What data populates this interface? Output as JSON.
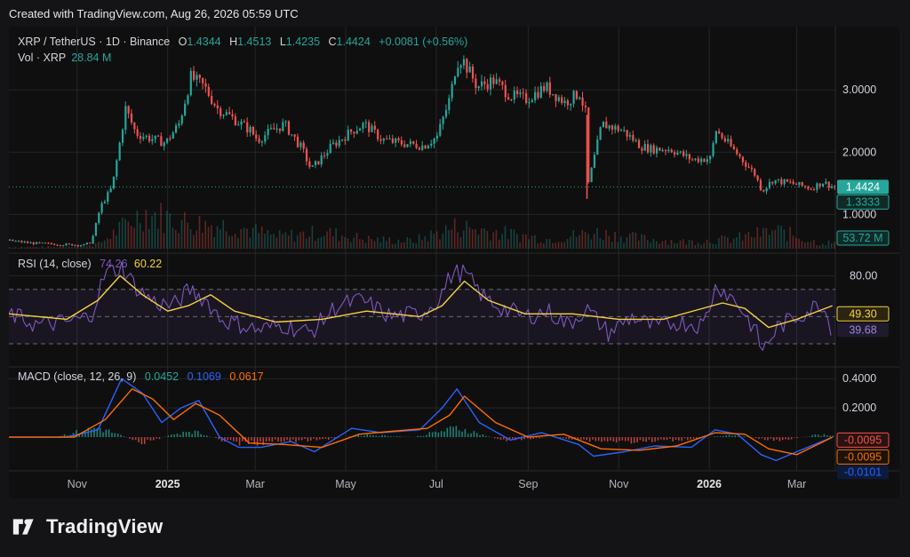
{
  "header": {
    "created_text": "Created with TradingView.com, Aug 26, 2026 05:59 UTC"
  },
  "brand": {
    "name": "TradingView"
  },
  "legend": {
    "symbol": "XRP / TetherUS · 1D · Binance",
    "o_label": "O",
    "o_value": "1.4344",
    "h_label": "H",
    "h_value": "1.4513",
    "l_label": "L",
    "l_value": "1.4235",
    "c_label": "C",
    "c_value": "1.4424",
    "change": "+0.0081 (+0.56%)",
    "vol_label": "Vol · XRP",
    "vol_value": "28.84 M"
  },
  "colors": {
    "up": "#26a69a",
    "down": "#ef5350",
    "rsi": "#7e57c2",
    "rsi_ma": "#f5d142",
    "macd": "#2962ff",
    "signal": "#ff6d00",
    "price_badge": "#26a69a"
  },
  "chart_data": [
    {
      "type": "line",
      "title": "XRP / TetherUS · 1D · Binance",
      "x_ticks": [
        "Nov",
        "2025",
        "Mar",
        "May",
        "Jul",
        "Sep",
        "Nov",
        "2026",
        "Mar"
      ],
      "y_ticks": [
        "3.0000",
        "2.0000",
        "1.0000"
      ],
      "ylim": [
        0.45,
        3.9
      ],
      "last_price_label": "1.4424",
      "secondary_label": "1.3333",
      "volume_label": "53.72 M",
      "series": [
        {
          "name": "XRP / TetherUS",
          "x": [
            "2024-09-16",
            "2024-10-01",
            "2024-10-20",
            "2024-11-05",
            "2024-11-10",
            "2024-11-16",
            "2024-11-24",
            "2024-12-03",
            "2024-12-10",
            "2024-12-20",
            "2024-12-30",
            "2025-01-08",
            "2025-01-16",
            "2025-01-25",
            "2025-02-03",
            "2025-02-10",
            "2025-02-25",
            "2025-03-02",
            "2025-03-12",
            "2025-03-20",
            "2025-04-01",
            "2025-04-07",
            "2025-04-21",
            "2025-05-05",
            "2025-05-13",
            "2025-05-25",
            "2025-06-05",
            "2025-06-22",
            "2025-07-01",
            "2025-07-10",
            "2025-07-14",
            "2025-07-18",
            "2025-07-28",
            "2025-08-08",
            "2025-08-20",
            "2025-08-30",
            "2025-09-12",
            "2025-09-25",
            "2025-10-05",
            "2025-10-10",
            "2025-10-11",
            "2025-10-20",
            "2025-11-03",
            "2025-11-15",
            "2025-11-22",
            "2025-12-05",
            "2025-12-20",
            "2026-01-01",
            "2026-01-05",
            "2026-01-20",
            "2026-01-31",
            "2026-02-05",
            "2026-02-12",
            "2026-02-25",
            "2026-03-10",
            "2026-03-18",
            "2026-03-25"
          ],
          "values": [
            0.58,
            0.54,
            0.52,
            0.51,
            0.56,
            1.12,
            1.44,
            2.7,
            2.3,
            2.22,
            2.15,
            2.45,
            3.2,
            3.05,
            2.7,
            2.6,
            2.35,
            2.2,
            2.35,
            2.45,
            2.05,
            1.72,
            2.1,
            2.35,
            2.45,
            2.2,
            2.15,
            2.1,
            2.25,
            2.9,
            3.45,
            3.5,
            3.05,
            3.15,
            2.9,
            2.85,
            3.05,
            2.8,
            2.95,
            2.55,
            1.5,
            2.45,
            2.35,
            2.1,
            2.05,
            2.05,
            1.88,
            1.9,
            2.35,
            1.95,
            1.65,
            1.38,
            1.55,
            1.5,
            1.42,
            1.52,
            1.44
          ]
        },
        {
          "name": "Volume",
          "x": [
            "2024-10",
            "2024-11",
            "2024-12",
            "2025-01",
            "2025-02",
            "2025-03",
            "2025-04",
            "2025-05",
            "2025-06",
            "2025-07",
            "2025-08",
            "2025-09",
            "2025-10",
            "2025-11",
            "2025-12",
            "2026-01",
            "2026-02",
            "2026-03"
          ],
          "values": [
            20,
            55,
            420,
            300,
            260,
            140,
            190,
            110,
            90,
            260,
            180,
            110,
            190,
            120,
            80,
            110,
            210,
            70
          ]
        }
      ]
    },
    {
      "type": "line",
      "title": "RSI (14, close)",
      "y_ticks": [
        "80.00"
      ],
      "ylim": [
        15,
        92
      ],
      "bands": [
        30,
        50,
        70
      ],
      "series": [
        {
          "name": "RSI",
          "label": "74.26",
          "x": [
            "2024-09-16",
            "2024-10-05",
            "2024-10-25",
            "2024-11-10",
            "2024-11-20",
            "2024-12-01",
            "2024-12-12",
            "2024-12-24",
            "2025-01-05",
            "2025-01-16",
            "2025-01-27",
            "2025-02-06",
            "2025-02-20",
            "2025-03-03",
            "2025-03-20",
            "2025-04-07",
            "2025-04-25",
            "2025-05-12",
            "2025-05-31",
            "2025-06-20",
            "2025-07-02",
            "2025-07-12",
            "2025-07-20",
            "2025-08-02",
            "2025-08-15",
            "2025-08-30",
            "2025-09-14",
            "2025-09-28",
            "2025-10-10",
            "2025-10-25",
            "2025-11-10",
            "2025-11-25",
            "2025-12-10",
            "2025-12-28",
            "2026-01-06",
            "2026-01-20",
            "2026-02-01",
            "2026-02-06",
            "2026-02-16",
            "2026-03-01",
            "2026-03-18",
            "2026-03-25"
          ],
          "values": [
            52,
            44,
            46,
            50,
            82,
            86,
            70,
            60,
            58,
            70,
            62,
            48,
            44,
            40,
            44,
            38,
            58,
            62,
            50,
            52,
            62,
            82,
            82,
            64,
            56,
            50,
            54,
            44,
            56,
            38,
            50,
            42,
            46,
            44,
            74,
            60,
            40,
            25,
            42,
            50,
            60,
            40
          ]
        },
        {
          "name": "RSI-based MA",
          "label": "60.22",
          "x": [
            "2024-09-16",
            "2024-10-25",
            "2024-11-15",
            "2024-11-30",
            "2024-12-15",
            "2025-01-01",
            "2025-01-15",
            "2025-01-30",
            "2025-02-15",
            "2025-03-15",
            "2025-04-15",
            "2025-05-15",
            "2025-06-20",
            "2025-07-05",
            "2025-07-20",
            "2025-08-05",
            "2025-08-30",
            "2025-10-01",
            "2025-11-01",
            "2025-12-01",
            "2026-01-10",
            "2026-01-25",
            "2026-02-10",
            "2026-03-01",
            "2026-03-25"
          ],
          "values": [
            52,
            48,
            62,
            80,
            66,
            54,
            58,
            66,
            54,
            46,
            48,
            54,
            50,
            58,
            76,
            62,
            52,
            52,
            48,
            48,
            60,
            56,
            42,
            48,
            58
          ]
        }
      ],
      "right_labels": [
        "49.30",
        "39.68"
      ]
    },
    {
      "type": "line",
      "title": "MACD (close, 12, 26, 9)",
      "y_ticks": [
        "0.4000",
        "0.2000"
      ],
      "ylim": [
        -0.2,
        0.45
      ],
      "series": [
        {
          "name": "Histogram",
          "label": "0.0452",
          "x": [
            "2024-10",
            "2024-11",
            "2024-12",
            "2025-01",
            "2025-02",
            "2025-03",
            "2025-04",
            "2025-05",
            "2025-06",
            "2025-07",
            "2025-08",
            "2025-09",
            "2025-10",
            "2025-11",
            "2025-12",
            "2026-01",
            "2026-02",
            "2026-03"
          ],
          "values": [
            0.0,
            0.08,
            -0.05,
            0.06,
            -0.06,
            -0.04,
            -0.02,
            0.02,
            0.0,
            0.08,
            -0.03,
            0.0,
            -0.03,
            -0.04,
            -0.02,
            0.02,
            -0.03,
            0.02
          ]
        },
        {
          "name": "MACD",
          "label": "0.1069",
          "x": [
            "2024-09-16",
            "2024-10-25",
            "2024-11-15",
            "2024-12-01",
            "2024-12-15",
            "2024-12-28",
            "2025-01-10",
            "2025-01-22",
            "2025-02-05",
            "2025-02-18",
            "2025-03-05",
            "2025-03-25",
            "2025-04-10",
            "2025-05-05",
            "2025-05-25",
            "2025-06-20",
            "2025-07-05",
            "2025-07-15",
            "2025-07-30",
            "2025-08-20",
            "2025-09-10",
            "2025-10-05",
            "2025-10-15",
            "2025-11-05",
            "2025-11-25",
            "2025-12-20",
            "2026-01-05",
            "2026-01-20",
            "2026-02-05",
            "2026-02-15",
            "2026-03-01",
            "2026-03-25"
          ],
          "values": [
            0.0,
            0.0,
            0.05,
            0.4,
            0.3,
            0.1,
            0.2,
            0.25,
            0.0,
            -0.07,
            -0.07,
            -0.03,
            -0.1,
            0.06,
            0.03,
            0.05,
            0.2,
            0.33,
            0.1,
            -0.02,
            0.03,
            -0.05,
            -0.13,
            -0.1,
            -0.06,
            -0.07,
            0.05,
            0.02,
            -0.12,
            -0.16,
            -0.1,
            0.0
          ]
        },
        {
          "name": "Signal",
          "label": "0.0617",
          "x": [
            "2024-09-16",
            "2024-10-30",
            "2024-11-20",
            "2024-12-08",
            "2024-12-22",
            "2025-01-05",
            "2025-01-20",
            "2025-02-05",
            "2025-02-25",
            "2025-03-20",
            "2025-04-15",
            "2025-05-10",
            "2025-06-01",
            "2025-06-25",
            "2025-07-10",
            "2025-07-20",
            "2025-08-10",
            "2025-09-01",
            "2025-09-25",
            "2025-10-20",
            "2025-11-15",
            "2025-12-10",
            "2026-01-05",
            "2026-01-25",
            "2026-02-10",
            "2026-03-01",
            "2026-03-25"
          ],
          "values": [
            0.0,
            0.0,
            0.12,
            0.33,
            0.26,
            0.12,
            0.23,
            0.15,
            -0.04,
            -0.05,
            -0.07,
            0.02,
            0.04,
            0.06,
            0.15,
            0.28,
            0.1,
            0.0,
            0.02,
            -0.08,
            -0.09,
            -0.06,
            0.03,
            0.02,
            -0.08,
            -0.12,
            0.0
          ]
        }
      ],
      "right_labels": [
        "-0.0095",
        "-0.0095",
        "-0.0101"
      ]
    }
  ]
}
